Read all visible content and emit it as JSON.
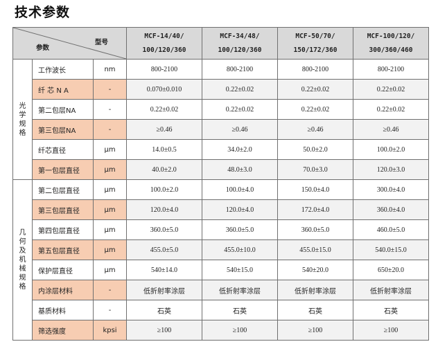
{
  "title": "技术参数",
  "header": {
    "corner_model": "型号",
    "corner_param": "参数",
    "models": [
      {
        "line1": "MCF-14/40/",
        "line2": "100/120/360"
      },
      {
        "line1": "MCF-34/48/",
        "line2": "100/120/360"
      },
      {
        "line1": "MCF-50/70/",
        "line2": "150/172/360"
      },
      {
        "line1": "MCF-100/120/",
        "line2": "300/360/460"
      }
    ]
  },
  "categories": {
    "optical": "光\n学\n规\n格",
    "geometric": "几\n何\n及\n机\n械\n规\n格"
  },
  "rows": [
    {
      "name": "工作波长",
      "unit": "nm",
      "values": [
        "800-2100",
        "800-2100",
        "800-2100",
        "800-2100"
      ],
      "shade": false
    },
    {
      "name": "纤 芯 N A",
      "unit": "-",
      "values": [
        "0.070±0.010",
        "0.22±0.02",
        "0.22±0.02",
        "0.22±0.02"
      ],
      "shade": true
    },
    {
      "name": "第二包层NA",
      "unit": "-",
      "values": [
        "0.22±0.02",
        "0.22±0.02",
        "0.22±0.02",
        "0.22±0.02"
      ],
      "shade": false
    },
    {
      "name": "第三包层NA",
      "unit": "-",
      "values": [
        "≥0.46",
        "≥0.46",
        "≥0.46",
        "≥0.46"
      ],
      "shade": true
    },
    {
      "name": "纤芯直径",
      "unit": "μm",
      "values": [
        "14.0±0.5",
        "34.0±2.0",
        "50.0±2.0",
        "100.0±2.0"
      ],
      "shade": false
    },
    {
      "name": "第一包层直径",
      "unit": "μm",
      "values": [
        "40.0±2.0",
        "48.0±3.0",
        "70.0±3.0",
        "120.0±3.0"
      ],
      "shade": true
    },
    {
      "name": "第二包层直径",
      "unit": "μm",
      "values": [
        "100.0±2.0",
        "100.0±4.0",
        "150.0±4.0",
        "300.0±4.0"
      ],
      "shade": false
    },
    {
      "name": "第三包层直径",
      "unit": "μm",
      "values": [
        "120.0±4.0",
        "120.0±4.0",
        "172.0±4.0",
        "360.0±4.0"
      ],
      "shade": true
    },
    {
      "name": "第四包层直径",
      "unit": "μm",
      "values": [
        "360.0±5.0",
        "360.0±5.0",
        "360.0±5.0",
        "460.0±5.0"
      ],
      "shade": false
    },
    {
      "name": "第五包层直径",
      "unit": "μm",
      "values": [
        "455.0±5.0",
        "455.0±10.0",
        "455.0±15.0",
        "540.0±15.0"
      ],
      "shade": true
    },
    {
      "name": "保护层直径",
      "unit": "μm",
      "values": [
        "540±14.0",
        "540±15.0",
        "540±20.0",
        "650±20.0"
      ],
      "shade": false
    },
    {
      "name": "内涂层材料",
      "unit": "-",
      "values": [
        "低折射率涂层",
        "低折射率涂层",
        "低折射率涂层",
        "低折射率涂层"
      ],
      "shade": true,
      "cn": true
    },
    {
      "name": "基质材料",
      "unit": "-",
      "values": [
        "石英",
        "石英",
        "石英",
        "石英"
      ],
      "shade": false,
      "cn": true
    },
    {
      "name": "筛选强度",
      "unit": "kpsi",
      "values": [
        "≥100",
        "≥100",
        "≥100",
        "≥100"
      ],
      "shade": true
    }
  ]
}
